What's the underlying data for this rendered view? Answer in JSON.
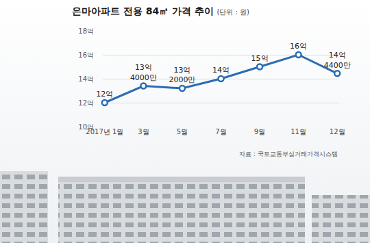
{
  "chart_data": {
    "type": "line",
    "title": "은마아파트 전용 84㎡ 가격 추이",
    "subtitle": "(단위 : 원)",
    "categories": [
      "2017년 1월",
      "3월",
      "5월",
      "7월",
      "9월",
      "11월",
      "12월"
    ],
    "values": [
      12,
      13.4,
      13.2,
      14,
      15,
      16,
      14.44
    ],
    "value_labels": [
      "12억",
      "13억 4000만",
      "13억 2000만",
      "14억",
      "15억",
      "16억",
      "14억 4400만"
    ],
    "data_labels": true,
    "color": "#2b6cb3",
    "marker": "circle",
    "ylim": [
      10,
      18
    ],
    "yticks": [
      {
        "value": 10,
        "label": "10억"
      },
      {
        "value": 12,
        "label": "12억"
      },
      {
        "value": 14,
        "label": "14억"
      },
      {
        "value": 16,
        "label": "16억"
      },
      {
        "value": 18,
        "label": "18억"
      }
    ],
    "grid": true,
    "source": "자료 : 국토교통부실거래가격시스템"
  }
}
